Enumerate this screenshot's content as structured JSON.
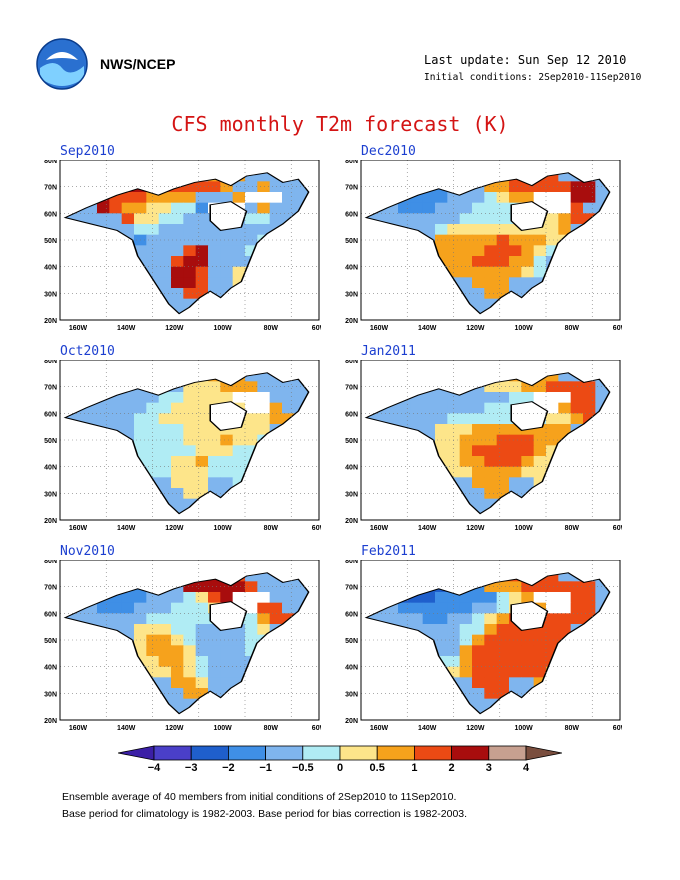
{
  "header": {
    "agency": "NWS/NCEP",
    "last_update": "Last update: Sun Sep 12 2010",
    "initial_conditions": "Initial conditions: 2Sep2010-11Sep2010"
  },
  "title": "CFS monthly T2m forecast (K)",
  "panels": [
    {
      "title": "Sep2010"
    },
    {
      "title": "Dec2010"
    },
    {
      "title": "Oct2010"
    },
    {
      "title": "Jan2011"
    },
    {
      "title": "Nov2010"
    },
    {
      "title": "Feb2011"
    }
  ],
  "axes": {
    "lat_labels": [
      "80N",
      "70N",
      "60N",
      "50N",
      "40N",
      "30N",
      "20N"
    ],
    "lon_labels": [
      "160W",
      "140W",
      "120W",
      "100W",
      "80W",
      "60W"
    ]
  },
  "colorbar": {
    "labels": [
      "-4",
      "-3",
      "-2",
      "-1",
      "-0.5",
      "0",
      "0.5",
      "1",
      "2",
      "3",
      "4"
    ],
    "colors": [
      "#3b1fa6",
      "#4a3fc8",
      "#1f5fcc",
      "#3f8fe6",
      "#7fb5ee",
      "#b0ecf4",
      "#fde58a",
      "#f6a21c",
      "#ec4a14",
      "#a80d0d",
      "#c7a090",
      "#7a4e3e"
    ]
  },
  "footer": {
    "line1": "Ensemble average of 40 members from initial conditions of 2Sep2010 to 11Sep2010.",
    "line2": "Base period for climatology is 1982-2003. Base period for bias correction is 1982-2003."
  }
}
